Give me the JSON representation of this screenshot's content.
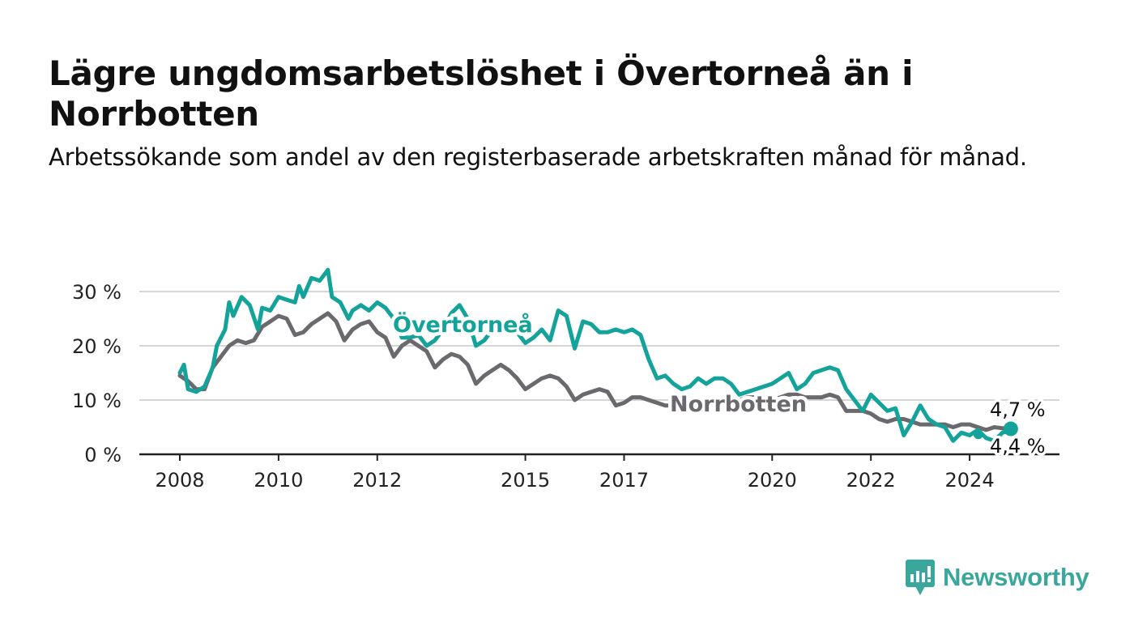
{
  "header": {
    "title": "Lägre ungdomsarbetslöshet i Övertorneå än i Norrbotten",
    "subtitle": "Arbetssökande som andel av den registerbaserade arbetskraften månad för månad."
  },
  "brand": {
    "name": "Newsworthy",
    "icon": "newsworthy-logo-icon",
    "color": "#3aa79d"
  },
  "chart_data": {
    "type": "line",
    "title": "Lägre ungdomsarbetslöshet i Övertorneå än i Norrbotten",
    "subtitle": "Arbetssökande som andel av den registerbaserade arbetskraften månad för månad.",
    "xlabel": "",
    "ylabel": "",
    "x_range": [
      "2008-01",
      "2025-01"
    ],
    "ylim": [
      0,
      30
    ],
    "grid": true,
    "x_ticks": [
      {
        "label": "2008",
        "date": "2008-01"
      },
      {
        "label": "2010",
        "date": "2010-01"
      },
      {
        "label": "2012",
        "date": "2012-01"
      },
      {
        "label": "2015",
        "date": "2015-01"
      },
      {
        "label": "2017",
        "date": "2017-01"
      },
      {
        "label": "2020",
        "date": "2020-01"
      },
      {
        "label": "2022",
        "date": "2022-01"
      },
      {
        "label": "2024",
        "date": "2024-01"
      }
    ],
    "y_ticks": [
      {
        "label": "0 %",
        "value": 0
      },
      {
        "label": "10 %",
        "value": 10
      },
      {
        "label": "20 %",
        "value": 20
      },
      {
        "label": "30 %",
        "value": 30
      }
    ],
    "series": [
      {
        "name": "Norrbotten",
        "color": "#6b696e",
        "end_label": "4,7 %",
        "end_value": 4.7,
        "points": [
          [
            "2008-01",
            14.5
          ],
          [
            "2008-03",
            13.5
          ],
          [
            "2008-05",
            12
          ],
          [
            "2008-07",
            12
          ],
          [
            "2008-09",
            16
          ],
          [
            "2008-11",
            18
          ],
          [
            "2009-01",
            20
          ],
          [
            "2009-03",
            21
          ],
          [
            "2009-05",
            20.5
          ],
          [
            "2009-07",
            21
          ],
          [
            "2009-09",
            23.5
          ],
          [
            "2009-11",
            24.5
          ],
          [
            "2010-01",
            25.5
          ],
          [
            "2010-03",
            25
          ],
          [
            "2010-05",
            22
          ],
          [
            "2010-07",
            22.5
          ],
          [
            "2010-09",
            24
          ],
          [
            "2010-11",
            25
          ],
          [
            "2011-01",
            26
          ],
          [
            "2011-03",
            24.5
          ],
          [
            "2011-05",
            21
          ],
          [
            "2011-07",
            23
          ],
          [
            "2011-09",
            24
          ],
          [
            "2011-11",
            24.5
          ],
          [
            "2012-01",
            22.5
          ],
          [
            "2012-03",
            21.5
          ],
          [
            "2012-05",
            18
          ],
          [
            "2012-07",
            20
          ],
          [
            "2012-09",
            21
          ],
          [
            "2012-11",
            20
          ],
          [
            "2013-01",
            19
          ],
          [
            "2013-03",
            16
          ],
          [
            "2013-05",
            17.5
          ],
          [
            "2013-07",
            18.5
          ],
          [
            "2013-09",
            18
          ],
          [
            "2013-11",
            16.5
          ],
          [
            "2014-01",
            13
          ],
          [
            "2014-03",
            14.5
          ],
          [
            "2014-05",
            15.5
          ],
          [
            "2014-07",
            16.5
          ],
          [
            "2014-09",
            15.5
          ],
          [
            "2014-11",
            14
          ],
          [
            "2015-01",
            12
          ],
          [
            "2015-03",
            13
          ],
          [
            "2015-05",
            14
          ],
          [
            "2015-07",
            14.5
          ],
          [
            "2015-09",
            14
          ],
          [
            "2015-11",
            12.5
          ],
          [
            "2016-01",
            10
          ],
          [
            "2016-03",
            11
          ],
          [
            "2016-05",
            11.5
          ],
          [
            "2016-07",
            12
          ],
          [
            "2016-09",
            11.5
          ],
          [
            "2016-11",
            9
          ],
          [
            "2017-01",
            9.5
          ],
          [
            "2017-03",
            10.5
          ],
          [
            "2017-05",
            10.5
          ],
          [
            "2017-07",
            10
          ],
          [
            "2017-09",
            9.5
          ],
          [
            "2017-11",
            9
          ],
          [
            "2018-01",
            9
          ],
          [
            "2018-03",
            9.5
          ],
          [
            "2018-05",
            10
          ],
          [
            "2018-07",
            10
          ],
          [
            "2018-09",
            9.5
          ],
          [
            "2018-11",
            9
          ],
          [
            "2019-01",
            9
          ],
          [
            "2019-03",
            9.5
          ],
          [
            "2019-05",
            10
          ],
          [
            "2019-07",
            10.5
          ],
          [
            "2019-09",
            10.5
          ],
          [
            "2019-11",
            10
          ],
          [
            "2020-01",
            10
          ],
          [
            "2020-03",
            10.5
          ],
          [
            "2020-05",
            11
          ],
          [
            "2020-07",
            11
          ],
          [
            "2020-09",
            10.5
          ],
          [
            "2020-11",
            10.5
          ],
          [
            "2021-01",
            10.5
          ],
          [
            "2021-03",
            11
          ],
          [
            "2021-05",
            10.5
          ],
          [
            "2021-07",
            8
          ],
          [
            "2021-09",
            8
          ],
          [
            "2021-11",
            8
          ],
          [
            "2022-01",
            7.5
          ],
          [
            "2022-03",
            6.5
          ],
          [
            "2022-05",
            6
          ],
          [
            "2022-07",
            6.5
          ],
          [
            "2022-09",
            6.5
          ],
          [
            "2022-11",
            6
          ],
          [
            "2023-01",
            5.5
          ],
          [
            "2023-03",
            5.5
          ],
          [
            "2023-05",
            5.5
          ],
          [
            "2023-07",
            5.5
          ],
          [
            "2023-09",
            5
          ],
          [
            "2023-11",
            5.5
          ],
          [
            "2024-01",
            5.5
          ],
          [
            "2024-03",
            5
          ],
          [
            "2024-05",
            4.5
          ],
          [
            "2024-07",
            5
          ],
          [
            "2024-09",
            4.8
          ],
          [
            "2024-11",
            4.7
          ]
        ]
      },
      {
        "name": "Övertorneå",
        "color": "#14a39a",
        "end_label": "4,4 %",
        "end_value": 4.4,
        "points": [
          [
            "2008-01",
            15
          ],
          [
            "2008-02",
            16.5
          ],
          [
            "2008-03",
            12
          ],
          [
            "2008-05",
            11.5
          ],
          [
            "2008-07",
            12.5
          ],
          [
            "2008-09",
            16
          ],
          [
            "2008-10",
            20
          ],
          [
            "2008-12",
            23
          ],
          [
            "2009-01",
            28
          ],
          [
            "2009-02",
            25.5
          ],
          [
            "2009-04",
            29
          ],
          [
            "2009-06",
            27.5
          ],
          [
            "2009-08",
            23
          ],
          [
            "2009-09",
            27
          ],
          [
            "2009-11",
            26.5
          ],
          [
            "2010-01",
            29
          ],
          [
            "2010-03",
            28.5
          ],
          [
            "2010-05",
            28
          ],
          [
            "2010-06",
            31
          ],
          [
            "2010-07",
            29
          ],
          [
            "2010-09",
            32.5
          ],
          [
            "2010-11",
            32
          ],
          [
            "2011-01",
            34
          ],
          [
            "2011-02",
            29
          ],
          [
            "2011-04",
            28
          ],
          [
            "2011-06",
            25
          ],
          [
            "2011-07",
            26.5
          ],
          [
            "2011-09",
            27.5
          ],
          [
            "2011-11",
            26.5
          ],
          [
            "2012-01",
            28
          ],
          [
            "2012-03",
            27
          ],
          [
            "2012-05",
            25
          ],
          [
            "2012-07",
            21.5
          ],
          [
            "2012-09",
            21.5
          ],
          [
            "2012-11",
            22
          ],
          [
            "2013-01",
            20
          ],
          [
            "2013-03",
            21
          ],
          [
            "2013-05",
            23
          ],
          [
            "2013-07",
            26
          ],
          [
            "2013-09",
            27.5
          ],
          [
            "2013-11",
            25
          ],
          [
            "2014-01",
            20
          ],
          [
            "2014-03",
            21
          ],
          [
            "2014-05",
            23
          ],
          [
            "2014-07",
            22.5
          ],
          [
            "2014-09",
            23
          ],
          [
            "2014-11",
            22.5
          ],
          [
            "2015-01",
            20.5
          ],
          [
            "2015-03",
            21.5
          ],
          [
            "2015-05",
            23
          ],
          [
            "2015-07",
            21
          ],
          [
            "2015-09",
            26.5
          ],
          [
            "2015-11",
            25.5
          ],
          [
            "2016-01",
            19.5
          ],
          [
            "2016-03",
            24.5
          ],
          [
            "2016-05",
            24
          ],
          [
            "2016-07",
            22.5
          ],
          [
            "2016-09",
            22.5
          ],
          [
            "2016-11",
            23
          ],
          [
            "2017-01",
            22.5
          ],
          [
            "2017-03",
            23
          ],
          [
            "2017-05",
            22
          ],
          [
            "2017-07",
            17.5
          ],
          [
            "2017-09",
            14
          ],
          [
            "2017-11",
            14.5
          ],
          [
            "2018-01",
            13
          ],
          [
            "2018-03",
            12
          ],
          [
            "2018-05",
            12.5
          ],
          [
            "2018-07",
            14
          ],
          [
            "2018-09",
            13
          ],
          [
            "2018-11",
            14
          ],
          [
            "2019-01",
            14
          ],
          [
            "2019-03",
            13
          ],
          [
            "2019-05",
            11
          ],
          [
            "2019-07",
            11.5
          ],
          [
            "2019-09",
            12
          ],
          [
            "2019-11",
            12.5
          ],
          [
            "2020-01",
            13
          ],
          [
            "2020-03",
            14
          ],
          [
            "2020-05",
            15
          ],
          [
            "2020-07",
            12
          ],
          [
            "2020-09",
            13
          ],
          [
            "2020-11",
            15
          ],
          [
            "2021-01",
            15.5
          ],
          [
            "2021-03",
            16
          ],
          [
            "2021-05",
            15.5
          ],
          [
            "2021-07",
            12
          ],
          [
            "2021-09",
            10
          ],
          [
            "2021-11",
            8
          ],
          [
            "2022-01",
            11
          ],
          [
            "2022-03",
            9.5
          ],
          [
            "2022-05",
            8
          ],
          [
            "2022-07",
            8.5
          ],
          [
            "2022-09",
            3.5
          ],
          [
            "2022-11",
            6
          ],
          [
            "2023-01",
            9
          ],
          [
            "2023-03",
            6.5
          ],
          [
            "2023-05",
            5.5
          ],
          [
            "2023-07",
            5
          ],
          [
            "2023-09",
            2.5
          ],
          [
            "2023-11",
            4
          ],
          [
            "2024-01",
            3.5
          ],
          [
            "2024-03",
            4.5
          ],
          [
            "2024-05",
            3
          ],
          [
            "2024-07",
            2.5
          ],
          [
            "2024-09",
            4
          ],
          [
            "2024-11",
            4.4
          ]
        ]
      }
    ]
  }
}
